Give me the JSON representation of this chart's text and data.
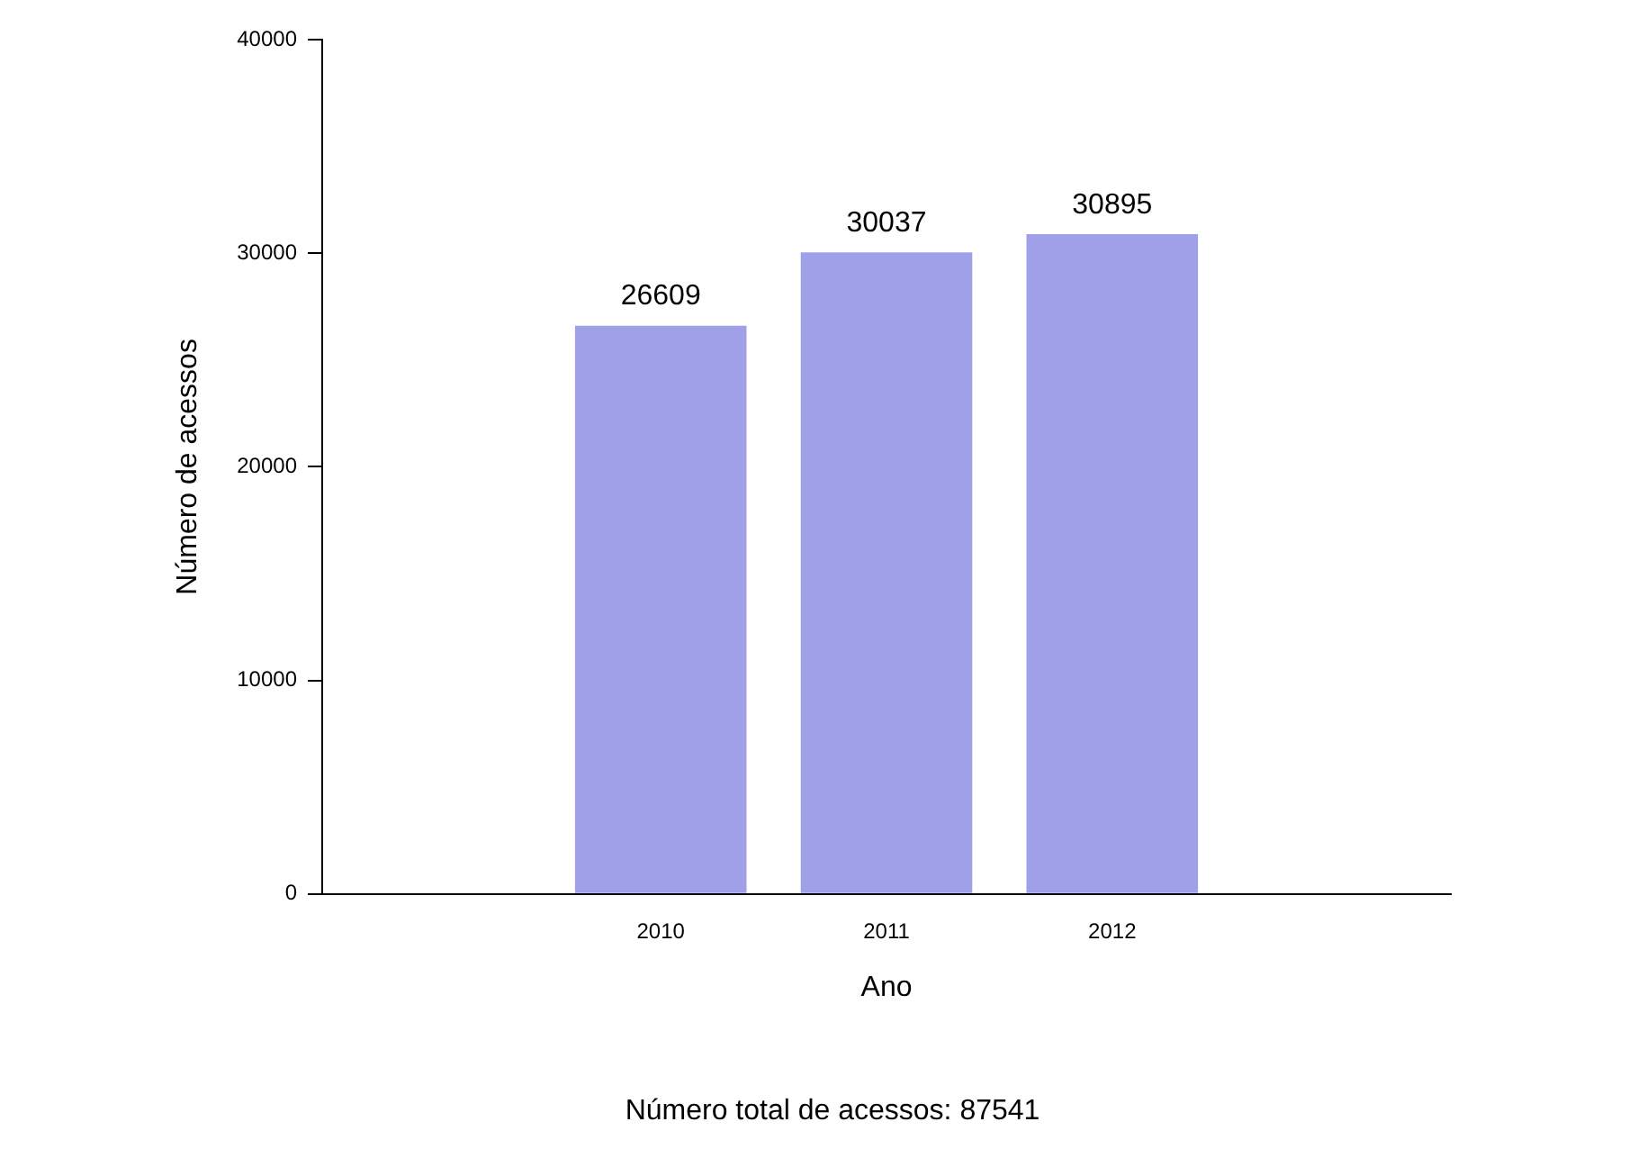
{
  "chart_data": {
    "type": "bar",
    "xlabel": "Ano",
    "ylabel": "Número de acessos",
    "categories": [
      "2010",
      "2011",
      "2012"
    ],
    "values": [
      26609,
      30037,
      30895
    ],
    "color": "#a0a0e8",
    "ylim": [
      0,
      40000
    ],
    "yticks": [
      0,
      10000,
      20000,
      30000,
      40000
    ],
    "data_labels": true,
    "annotations": [
      "Número total de acessos: 87541"
    ]
  }
}
